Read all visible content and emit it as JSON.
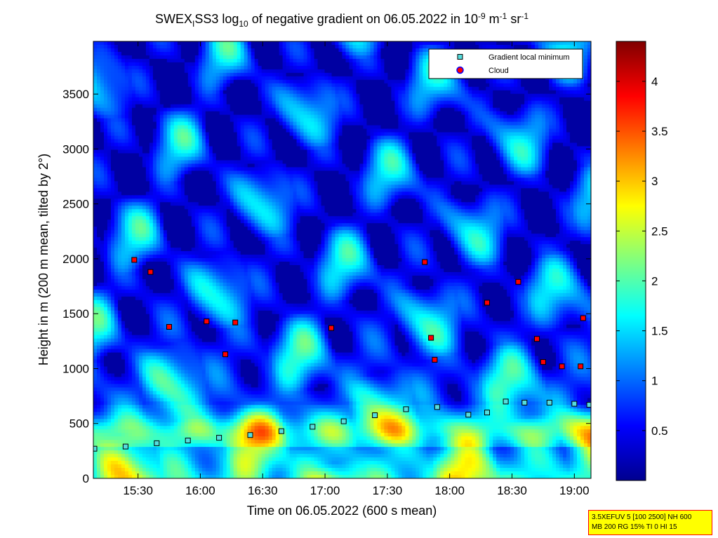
{
  "chart_data": {
    "type": "heatmap",
    "title": {
      "parts": [
        "SWEX",
        "I",
        "SS3 log",
        "10",
        " of negative gradient on 06.05.2022 in 10",
        "-9",
        " m",
        "-1",
        " sr",
        "-1"
      ]
    },
    "xlabel": "Time on 06.05.2022 (600 s mean)",
    "ylabel": "Height in m (200 m mean, tilted by 2°)",
    "xlim_hours": [
      15.1417,
      19.1333
    ],
    "ylim": [
      0,
      3980
    ],
    "x_ticks": [
      {
        "value": 15.5,
        "label": "15:30"
      },
      {
        "value": 16.0,
        "label": "16:00"
      },
      {
        "value": 16.5,
        "label": "16:30"
      },
      {
        "value": 17.0,
        "label": "17:00"
      },
      {
        "value": 17.5,
        "label": "17:30"
      },
      {
        "value": 18.0,
        "label": "18:00"
      },
      {
        "value": 18.5,
        "label": "18:30"
      },
      {
        "value": 19.0,
        "label": "19:00"
      }
    ],
    "y_ticks": [
      0,
      500,
      1000,
      1500,
      2000,
      2500,
      3000,
      3500
    ],
    "colorbar": {
      "colormap": "jet",
      "range": [
        0,
        4.4
      ],
      "ticks": [
        0.5,
        1,
        1.5,
        2,
        2.5,
        3,
        3.5,
        4
      ]
    },
    "legend": {
      "placement": "top-right",
      "entries": [
        {
          "label": "Gradient local minimum",
          "marker": "square",
          "color": "#55dddd"
        },
        {
          "label": "Cloud",
          "marker": "circle",
          "color": "#ff0000",
          "edge": "#0000ff"
        }
      ]
    },
    "series": [
      {
        "name": "Gradient local minimum",
        "x": [
          15.15,
          15.4,
          15.65,
          15.9,
          16.15,
          16.4,
          16.65,
          16.9,
          17.15,
          17.4,
          17.65,
          17.9,
          18.15,
          18.3,
          18.45,
          18.6,
          18.8,
          19.0,
          19.12
        ],
        "y": [
          270,
          290,
          320,
          345,
          370,
          395,
          430,
          470,
          520,
          575,
          630,
          650,
          580,
          600,
          700,
          690,
          690,
          680,
          670
        ]
      },
      {
        "name": "Cloud",
        "x": [
          15.47,
          15.6,
          15.75,
          16.05,
          16.2,
          16.28,
          17.05,
          17.8,
          17.85,
          17.88,
          18.3,
          18.55,
          18.7,
          18.75,
          18.9,
          19.05,
          19.07
        ],
        "y": [
          1990,
          1880,
          1380,
          1430,
          1130,
          1420,
          1370,
          1970,
          1280,
          1080,
          1600,
          1790,
          1270,
          1060,
          1020,
          1020,
          1460
        ]
      }
    ]
  },
  "info_box": {
    "line1": "3.5XEFUV 5 [100 2500] NH 600",
    "line2": "MB 200 RG 15% TI 0 HI 15"
  }
}
